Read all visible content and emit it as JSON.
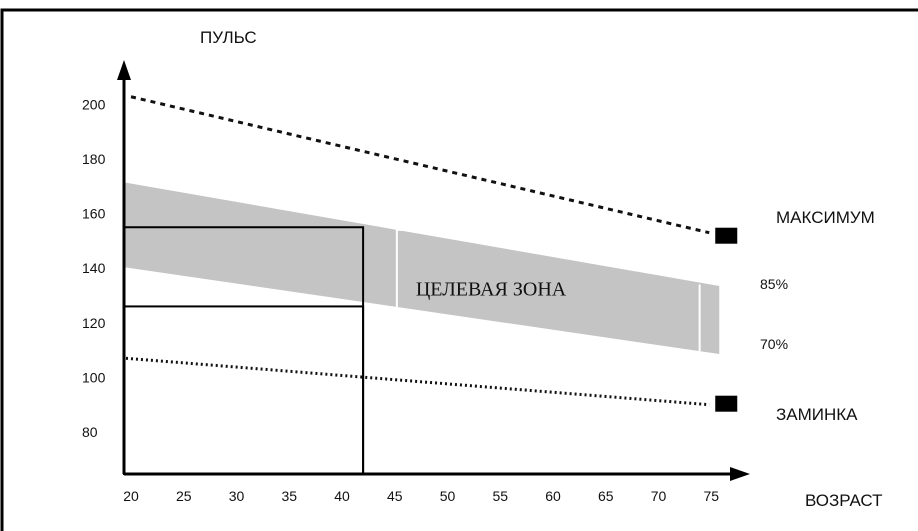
{
  "chart_data": {
    "type": "line",
    "ylabel": "ПУЛЬС",
    "xlabel": "ВОЗРАСТ",
    "x_ticks": [
      20,
      25,
      30,
      35,
      40,
      45,
      50,
      55,
      60,
      65,
      70,
      75
    ],
    "y_ticks": [
      80,
      100,
      120,
      140,
      160,
      180,
      200
    ],
    "xlim": [
      20,
      75
    ],
    "ylim": [
      80,
      200
    ],
    "series": [
      {
        "name": "МАКСИМУМ",
        "style": "dashed",
        "x": [
          20,
          75
        ],
        "y": [
          205,
          153
        ]
      },
      {
        "name": "ЗАМИНКА",
        "style": "dotted",
        "x": [
          20,
          75
        ],
        "y": [
          107,
          90
        ]
      }
    ],
    "target_zone": {
      "label": "ЦЕЛЕВАЯ ЗОНА",
      "upper_label": "85%",
      "lower_label": "70%",
      "x": [
        20,
        75
      ],
      "upper": [
        171,
        134
      ],
      "lower": [
        140,
        109
      ]
    },
    "example": {
      "age": 42,
      "upper": 155,
      "lower": 126
    },
    "colors": {
      "zone": "#c4c4c4",
      "lines": "#111111",
      "frame": "#000000"
    }
  }
}
